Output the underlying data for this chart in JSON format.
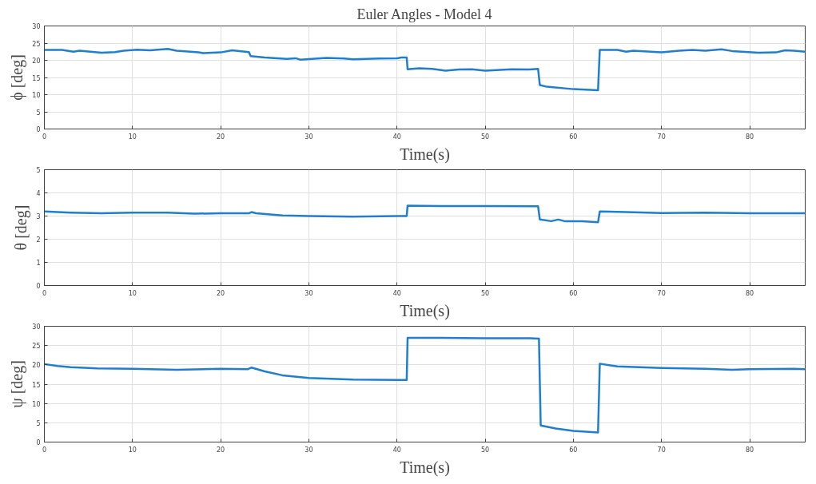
{
  "chart_data": [
    {
      "type": "line",
      "title": "Euler Angles - Model 4",
      "xlabel": "Time(s)",
      "ylabel": "ϕ [deg]",
      "xlim": [
        0,
        86.3
      ],
      "ylim": [
        0,
        30
      ],
      "xticks": [
        0,
        10,
        20,
        30,
        40,
        50,
        60,
        70,
        80
      ],
      "yticks": [
        0,
        5,
        10,
        15,
        20,
        25,
        30
      ],
      "grid": true,
      "series": [
        {
          "color": "#1f7fce",
          "x": [
            0,
            2,
            3.3,
            4,
            6.5,
            8,
            9,
            10.5,
            12,
            14,
            15,
            17.5,
            18,
            20,
            21.3,
            23.2,
            23.4,
            25,
            27.5,
            28.5,
            29,
            31,
            32,
            34,
            35,
            38,
            40,
            40.5,
            41.1,
            41.2,
            42.5,
            44,
            45.5,
            47,
            48.5,
            50,
            53,
            55,
            56,
            56.2,
            57,
            60,
            62.8,
            63,
            65,
            66,
            66.8,
            70,
            72,
            73.5,
            75,
            76.8,
            78,
            81,
            83,
            84,
            85,
            86.3
          ],
          "values": [
            23.0,
            23.0,
            22.5,
            22.8,
            22.2,
            22.4,
            22.8,
            23.1,
            22.9,
            23.3,
            22.8,
            22.3,
            22.1,
            22.3,
            22.9,
            22.4,
            21.2,
            20.8,
            20.4,
            20.6,
            20.2,
            20.5,
            20.7,
            20.5,
            20.3,
            20.5,
            20.6,
            20.8,
            20.8,
            17.4,
            17.7,
            17.5,
            17.0,
            17.3,
            17.4,
            17.0,
            17.4,
            17.3,
            17.5,
            12.8,
            12.3,
            11.6,
            11.3,
            23.0,
            23.0,
            22.5,
            22.8,
            22.3,
            22.8,
            23.0,
            22.8,
            23.2,
            22.7,
            22.2,
            22.3,
            22.9,
            22.8,
            22.5
          ]
        }
      ]
    },
    {
      "type": "line",
      "xlabel": "Time(s)",
      "ylabel": "θ [deg]",
      "xlim": [
        0,
        86.3
      ],
      "ylim": [
        0,
        5
      ],
      "xticks": [
        0,
        10,
        20,
        30,
        40,
        50,
        60,
        70,
        80
      ],
      "yticks": [
        0,
        1,
        2,
        3,
        4,
        5
      ],
      "grid": true,
      "series": [
        {
          "color": "#1f7fce",
          "x": [
            0,
            3,
            6.5,
            10,
            14,
            17,
            20,
            23.2,
            23.5,
            24,
            27,
            30,
            35,
            40,
            41.1,
            41.2,
            45,
            50,
            56,
            56.2,
            57.5,
            58.3,
            59,
            61,
            62.8,
            63,
            66,
            70,
            75,
            80,
            86.3
          ],
          "values": [
            3.2,
            3.15,
            3.12,
            3.15,
            3.15,
            3.1,
            3.12,
            3.12,
            3.17,
            3.12,
            3.03,
            3.0,
            2.97,
            3.0,
            3.0,
            3.45,
            3.43,
            3.43,
            3.42,
            2.85,
            2.78,
            2.85,
            2.78,
            2.78,
            2.73,
            3.2,
            3.17,
            3.13,
            3.15,
            3.12,
            3.12
          ]
        }
      ]
    },
    {
      "type": "line",
      "xlabel": "Time(s)",
      "ylabel": "ψ [deg]",
      "xlim": [
        0,
        86.3
      ],
      "ylim": [
        0,
        30
      ],
      "xticks": [
        0,
        10,
        20,
        30,
        40,
        50,
        60,
        70,
        80
      ],
      "yticks": [
        0,
        5,
        10,
        15,
        20,
        25,
        30
      ],
      "grid": true,
      "series": [
        {
          "color": "#1f7fce",
          "x": [
            0,
            1.5,
            3,
            6,
            10,
            15,
            20,
            23.1,
            23.5,
            25,
            27,
            30,
            35,
            40,
            41.1,
            41.2,
            45,
            50,
            55,
            56.1,
            56.3,
            58,
            60,
            62.8,
            63,
            65,
            70,
            75,
            78,
            80,
            85,
            86.3
          ],
          "values": [
            20.2,
            19.7,
            19.4,
            19.1,
            19.0,
            18.7,
            19.0,
            18.9,
            19.3,
            18.3,
            17.3,
            16.6,
            16.2,
            16.1,
            16.1,
            27.0,
            27.0,
            26.9,
            26.9,
            26.8,
            4.3,
            3.5,
            2.9,
            2.5,
            20.3,
            19.6,
            19.2,
            19.0,
            18.7,
            18.9,
            19.0,
            18.9
          ]
        }
      ]
    }
  ]
}
